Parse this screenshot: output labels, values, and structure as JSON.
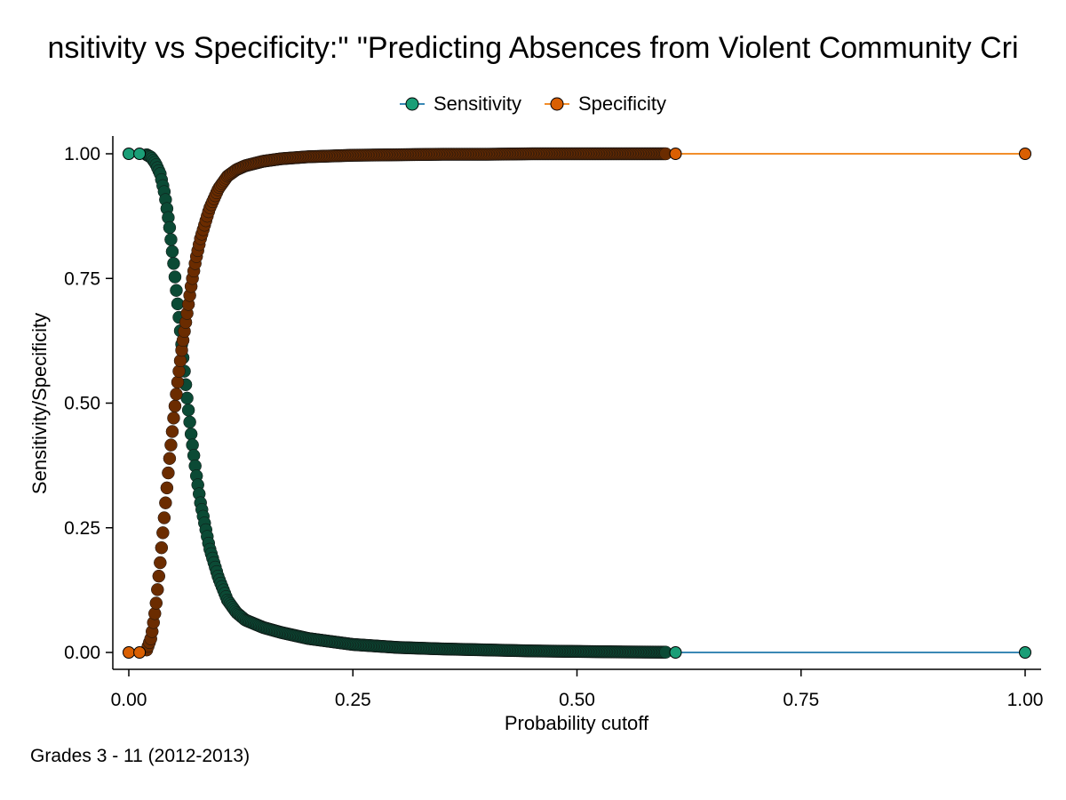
{
  "chart_data": {
    "type": "line",
    "title": "nsitivity vs Specificity:\" \"Predicting Absences from Violent Community Cri",
    "xlabel": "Probability cutoff",
    "ylabel": "Sensitivity/Specificity",
    "note": "Grades 3 - 11 (2012-2013)",
    "xlim": [
      0,
      1
    ],
    "ylim": [
      0,
      1
    ],
    "xticks": [
      0,
      0.25,
      0.5,
      0.75,
      1
    ],
    "xtick_labels": [
      "0.00",
      "0.25",
      "0.50",
      "0.75",
      "1.00"
    ],
    "yticks": [
      0,
      0.25,
      0.5,
      0.75,
      1
    ],
    "ytick_labels": [
      "0.00",
      "0.25",
      "0.50",
      "0.75",
      "1.00"
    ],
    "grid": false,
    "legend_position": "top",
    "series": [
      {
        "name": "Sensitivity",
        "marker_color": "#1b9e77",
        "dense_color": "#0b4a35",
        "line_color": "#3a88b5",
        "x": [
          0,
          0.012,
          0.02,
          0.025,
          0.03,
          0.035,
          0.04,
          0.045,
          0.05,
          0.055,
          0.06,
          0.065,
          0.07,
          0.075,
          0.08,
          0.09,
          0.1,
          0.11,
          0.12,
          0.13,
          0.15,
          0.17,
          0.2,
          0.25,
          0.3,
          0.35,
          0.4,
          0.45,
          0.5,
          0.55,
          0.6,
          0.61,
          1
        ],
        "y": [
          1,
          1,
          0.998,
          0.993,
          0.98,
          0.96,
          0.92,
          0.86,
          0.78,
          0.69,
          0.6,
          0.51,
          0.43,
          0.36,
          0.3,
          0.21,
          0.15,
          0.105,
          0.08,
          0.065,
          0.05,
          0.04,
          0.028,
          0.016,
          0.01,
          0.007,
          0.005,
          0.003,
          0.002,
          0.001,
          0.0005,
          0,
          0
        ]
      },
      {
        "name": "Specificity",
        "marker_color": "#d95f02",
        "dense_color": "#6b2c00",
        "line_color": "#f28e2b",
        "x": [
          0,
          0.012,
          0.02,
          0.025,
          0.03,
          0.035,
          0.04,
          0.045,
          0.05,
          0.055,
          0.06,
          0.065,
          0.07,
          0.075,
          0.08,
          0.09,
          0.1,
          0.11,
          0.12,
          0.13,
          0.15,
          0.17,
          0.2,
          0.25,
          0.3,
          0.35,
          0.4,
          0.45,
          0.5,
          0.55,
          0.6,
          0.61,
          1
        ],
        "y": [
          0,
          0,
          0.005,
          0.03,
          0.09,
          0.18,
          0.28,
          0.38,
          0.47,
          0.55,
          0.62,
          0.68,
          0.74,
          0.79,
          0.83,
          0.89,
          0.93,
          0.955,
          0.968,
          0.976,
          0.985,
          0.99,
          0.994,
          0.997,
          0.998,
          0.999,
          0.999,
          1,
          1,
          1,
          1,
          1,
          1
        ]
      }
    ]
  }
}
